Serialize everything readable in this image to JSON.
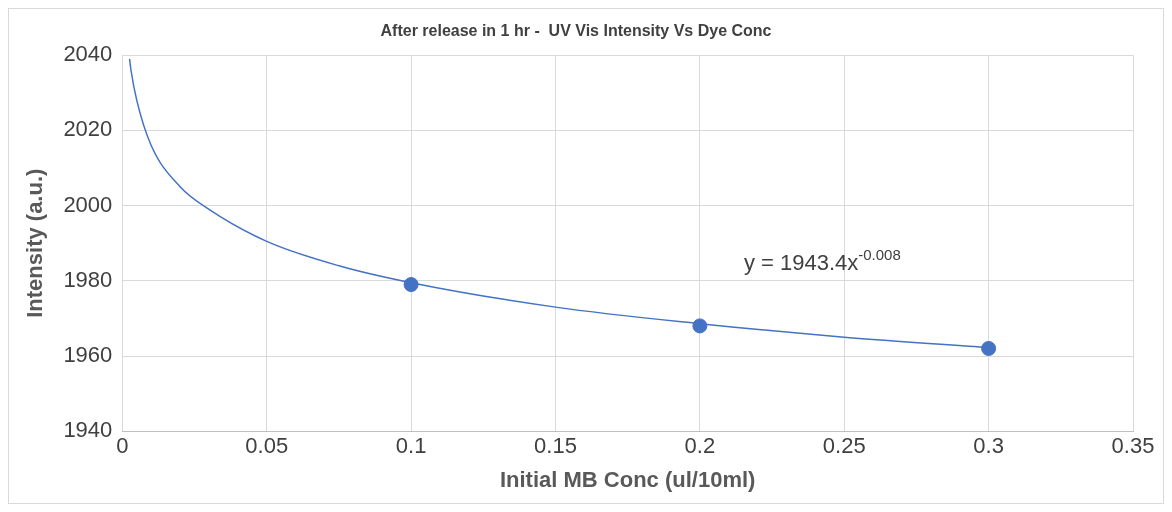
{
  "chart_data": {
    "type": "scatter",
    "title": "After release in 1 hr -  UV Vis Intensity Vs Dye Conc",
    "xlabel": "Initial MB Conc (ul/10ml)",
    "ylabel": "Intensity (a.u.)",
    "series": [
      {
        "type": "scatter",
        "color": "#4472c4",
        "marker": "circle",
        "x": [
          0.1,
          0.2,
          0.3
        ],
        "values": [
          1979,
          1968,
          1962
        ]
      },
      {
        "type": "line",
        "color": "#4472c4",
        "marker": "none",
        "x": [
          0.0025,
          0.003,
          0.005,
          0.01,
          0.02,
          0.03,
          0.05,
          0.075,
          0.1,
          0.15,
          0.2,
          0.25,
          0.3
        ],
        "values": [
          2039,
          2036,
          2028,
          2016,
          2005,
          1999,
          1990.5,
          1984,
          1979.5,
          1973,
          1968.6,
          1965,
          1962.2
        ]
      }
    ],
    "xlim": [
      0,
      0.35
    ],
    "xticks": [
      0,
      0.05,
      0.1,
      0.15,
      0.2,
      0.25,
      0.3,
      0.35
    ],
    "ylim": [
      1940,
      2040
    ],
    "yticks": [
      1940,
      1960,
      1980,
      2000,
      2020,
      2040
    ],
    "grid": true,
    "annotations": [
      "y = 1943.4x$^{-0.008}$"
    ]
  }
}
